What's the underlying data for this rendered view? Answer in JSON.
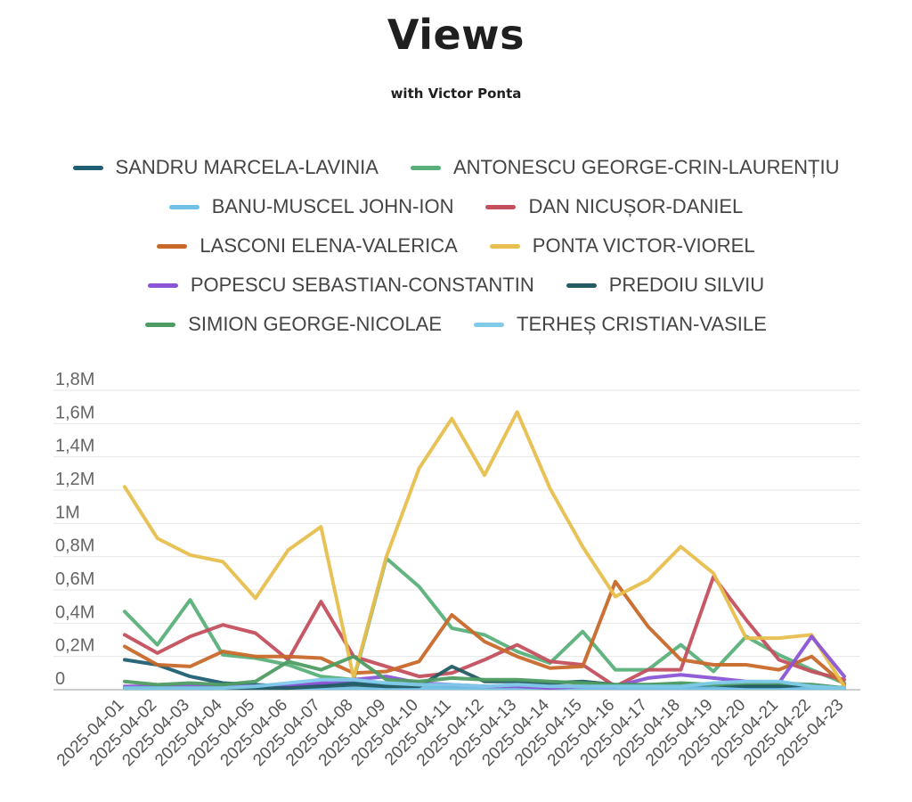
{
  "title": "Views",
  "subtitle": "with Victor Ponta",
  "chart_data": {
    "type": "line",
    "title": "Views",
    "subtitle": "with Victor Ponta",
    "ylim": [
      0,
      1800000
    ],
    "y_ticks": [
      0,
      200000,
      400000,
      600000,
      800000,
      1000000,
      1200000,
      1400000,
      1600000,
      1800000
    ],
    "y_tick_labels": [
      "0",
      "0,2M",
      "0,4M",
      "0,6M",
      "0,8M",
      "1M",
      "1,2M",
      "1,4M",
      "1,6M",
      "1,8M"
    ],
    "grid": true,
    "legend_position": "top",
    "x": [
      "2025-04-01",
      "2025-04-02",
      "2025-04-03",
      "2025-04-04",
      "2025-04-05",
      "2025-04-06",
      "2025-04-07",
      "2025-04-08",
      "2025-04-09",
      "2025-04-10",
      "2025-04-11",
      "2025-04-12",
      "2025-04-13",
      "2025-04-14",
      "2025-04-15",
      "2025-04-16",
      "2025-04-17",
      "2025-04-18",
      "2025-04-19",
      "2025-04-20",
      "2025-04-21",
      "2025-04-22",
      "2025-04-23"
    ],
    "series": [
      {
        "name": "SANDRU MARCELA-LAVINIA",
        "color": "#1f5f73",
        "values": [
          180000,
          150000,
          80000,
          40000,
          30000,
          20000,
          30000,
          40000,
          30000,
          30000,
          20000,
          20000,
          20000,
          20000,
          20000,
          20000,
          20000,
          20000,
          20000,
          20000,
          20000,
          20000,
          10000
        ]
      },
      {
        "name": "ANTONESCU GEORGE-CRIN-LAURENȚIU",
        "color": "#5ab07a",
        "values": [
          470000,
          270000,
          540000,
          210000,
          190000,
          150000,
          80000,
          60000,
          790000,
          620000,
          370000,
          330000,
          230000,
          160000,
          350000,
          120000,
          120000,
          270000,
          110000,
          320000,
          210000,
          120000,
          40000
        ]
      },
      {
        "name": "BANU-MUSCEL JOHN-ION",
        "color": "#6fc0e6",
        "values": [
          10000,
          10000,
          10000,
          10000,
          10000,
          10000,
          10000,
          10000,
          10000,
          10000,
          10000,
          10000,
          10000,
          10000,
          10000,
          10000,
          10000,
          10000,
          10000,
          10000,
          10000,
          10000,
          10000
        ]
      },
      {
        "name": "DAN NICUȘOR-DANIEL",
        "color": "#c4505e",
        "values": [
          330000,
          220000,
          320000,
          390000,
          340000,
          180000,
          530000,
          200000,
          140000,
          80000,
          100000,
          180000,
          270000,
          170000,
          150000,
          20000,
          120000,
          120000,
          680000,
          420000,
          180000,
          110000,
          60000
        ]
      },
      {
        "name": "LASCONI ELENA-VALERICA",
        "color": "#c8692a",
        "values": [
          260000,
          150000,
          140000,
          230000,
          200000,
          200000,
          190000,
          100000,
          110000,
          170000,
          450000,
          290000,
          200000,
          130000,
          140000,
          650000,
          380000,
          180000,
          150000,
          150000,
          120000,
          200000,
          30000
        ]
      },
      {
        "name": "PONTA VICTOR-VIOREL",
        "color": "#e8bf4e",
        "values": [
          1220000,
          910000,
          810000,
          770000,
          550000,
          840000,
          980000,
          70000,
          800000,
          1330000,
          1630000,
          1290000,
          1670000,
          1210000,
          860000,
          560000,
          660000,
          860000,
          700000,
          310000,
          310000,
          330000,
          20000
        ]
      },
      {
        "name": "POPESCU SEBASTIAN-CONSTANTIN",
        "color": "#8a55d6",
        "values": [
          20000,
          20000,
          20000,
          20000,
          20000,
          20000,
          40000,
          60000,
          80000,
          40000,
          30000,
          20000,
          20000,
          10000,
          20000,
          20000,
          70000,
          90000,
          70000,
          50000,
          40000,
          320000,
          80000
        ]
      },
      {
        "name": "PREDOIU SILVIU",
        "color": "#245c64",
        "values": [
          10000,
          10000,
          10000,
          10000,
          10000,
          10000,
          20000,
          30000,
          20000,
          20000,
          140000,
          50000,
          50000,
          40000,
          50000,
          30000,
          30000,
          30000,
          30000,
          20000,
          20000,
          30000,
          10000
        ]
      },
      {
        "name": "SIMION GEORGE-NICOLAE",
        "color": "#4f9c63",
        "values": [
          50000,
          30000,
          40000,
          30000,
          50000,
          170000,
          120000,
          200000,
          60000,
          50000,
          70000,
          60000,
          60000,
          50000,
          40000,
          30000,
          30000,
          40000,
          30000,
          40000,
          40000,
          30000,
          10000
        ]
      },
      {
        "name": "TERHEȘ CRISTIAN-VASILE",
        "color": "#80cbea",
        "values": [
          10000,
          10000,
          10000,
          10000,
          20000,
          40000,
          60000,
          60000,
          40000,
          30000,
          30000,
          20000,
          30000,
          20000,
          20000,
          20000,
          20000,
          20000,
          40000,
          50000,
          50000,
          20000,
          10000
        ]
      }
    ]
  }
}
